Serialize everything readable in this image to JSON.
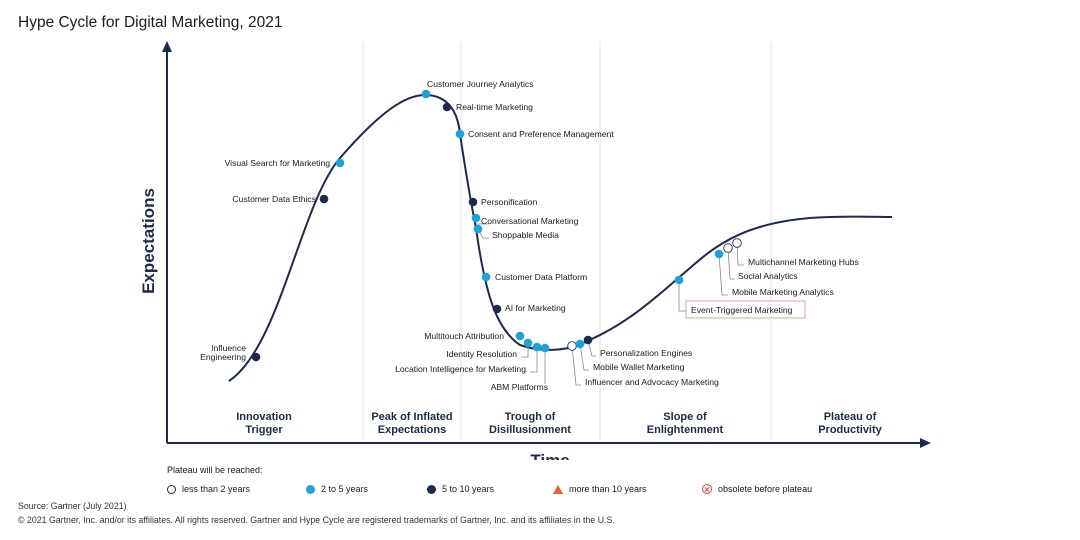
{
  "title": "Hype Cycle for Digital Marketing, 2021",
  "chart_data": {
    "type": "scatter",
    "title": "Hype Cycle for Digital Marketing, 2021",
    "xlabel": "Time",
    "ylabel": "Expectations",
    "phases": [
      {
        "line1": "Innovation",
        "line2": "Trigger"
      },
      {
        "line1": "Peak of Inflated",
        "line2": "Expectations"
      },
      {
        "line1": "Trough of",
        "line2": "Disillusionment"
      },
      {
        "line1": "Slope of",
        "line2": "Enlightenment"
      },
      {
        "line1": "Plateau of",
        "line2": "Productivity"
      }
    ],
    "technologies": [
      {
        "name": "Influence Engineering",
        "label_lines": [
          "Influence",
          "Engineering"
        ],
        "category": "5 to 10 years"
      },
      {
        "name": "Customer Data Ethics",
        "category": "5 to 10 years"
      },
      {
        "name": "Visual Search for Marketing",
        "category": "2 to 5 years"
      },
      {
        "name": "Customer Journey Analytics",
        "category": "2 to 5 years"
      },
      {
        "name": "Real-time Marketing",
        "category": "5 to 10 years"
      },
      {
        "name": "Consent and Preference Management",
        "category": "2 to 5 years"
      },
      {
        "name": "Personification",
        "category": "5 to 10 years"
      },
      {
        "name": "Conversational Marketing",
        "category": "2 to 5 years"
      },
      {
        "name": "Shoppable Media",
        "category": "2 to 5 years"
      },
      {
        "name": "Customer Data Platform",
        "category": "2 to 5 years"
      },
      {
        "name": "AI for Marketing",
        "category": "5 to 10 years"
      },
      {
        "name": "Multitouch Attribution",
        "category": "2 to 5 years"
      },
      {
        "name": "Identity Resolution",
        "category": "2 to 5 years"
      },
      {
        "name": "Location Intelligence for Marketing",
        "category": "2 to 5 years"
      },
      {
        "name": "ABM Platforms",
        "category": "2 to 5 years"
      },
      {
        "name": "Influencer and Advocacy Marketing",
        "category": "less than 2 years"
      },
      {
        "name": "Mobile Wallet Marketing",
        "category": "2 to 5 years"
      },
      {
        "name": "Personalization Engines",
        "category": "5 to 10 years"
      },
      {
        "name": "Event-Triggered Marketing",
        "category": "2 to 5 years",
        "highlighted": true
      },
      {
        "name": "Mobile Marketing Analytics",
        "category": "2 to 5 years"
      },
      {
        "name": "Social Analytics",
        "category": "less than 2 years"
      },
      {
        "name": "Multichannel Marketing Hubs",
        "category": "less than 2 years"
      }
    ],
    "legend": {
      "title": "Plateau will be reached:",
      "items": [
        {
          "label": "less than 2 years",
          "symbol": "white-circle"
        },
        {
          "label": "2 to 5 years",
          "symbol": "light-blue-circle"
        },
        {
          "label": "5 to 10 years",
          "symbol": "dark-blue-circle"
        },
        {
          "label": "more than 10 years",
          "symbol": "orange-triangle"
        },
        {
          "label": "obsolete before plateau",
          "symbol": "red-crossed-circle"
        }
      ]
    },
    "colors": {
      "curve": "#1b2a4e",
      "less_than_2": "#ffffff",
      "two_to_five": "#1ba1dc",
      "five_to_ten": "#1b2a4e",
      "more_than_10": "#e8632b",
      "obsolete": "#e04040",
      "highlight_box": "#e8a090"
    }
  },
  "footer": {
    "source": "Source: Gartner (July 2021)",
    "copyright": "© 2021 Gartner, Inc. and/or its affiliates. All rights reserved. Gartner and Hype Cycle are registered trademarks of Gartner, Inc. and its affiliates in the U.S."
  }
}
